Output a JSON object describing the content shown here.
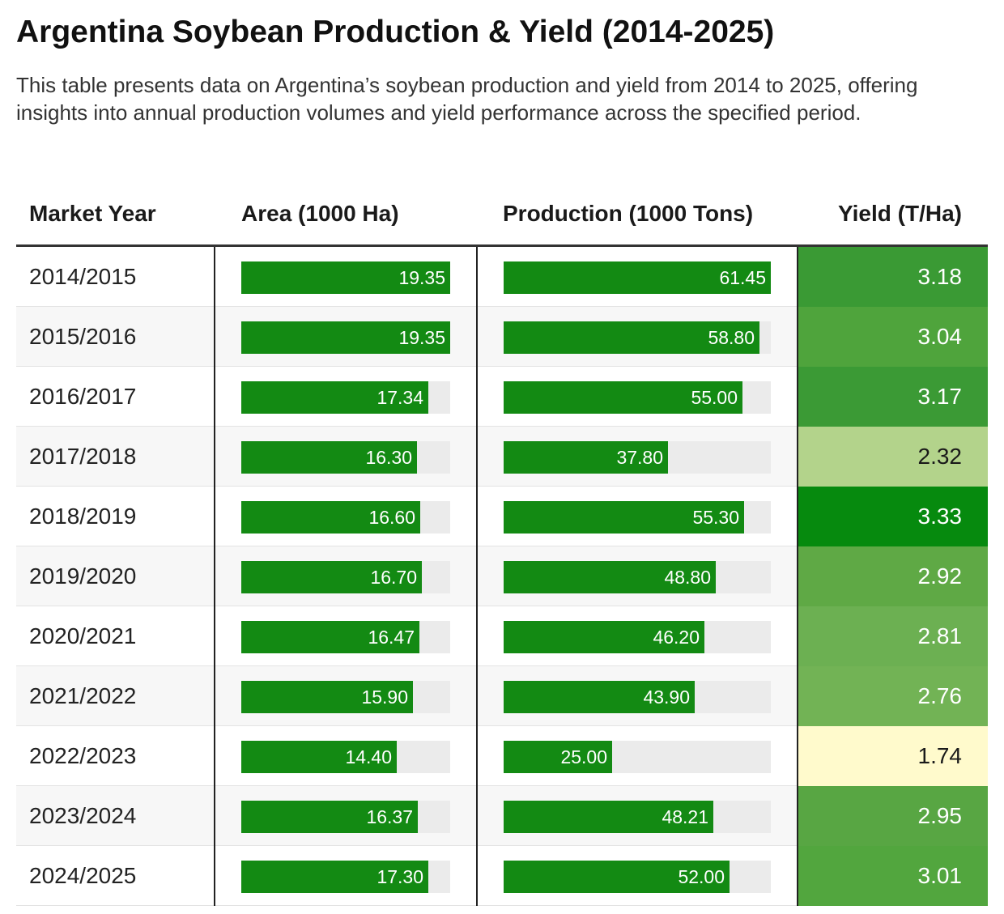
{
  "title": "Argentina Soybean Production & Yield (2014-2025)",
  "subtitle": "This table presents data on Argentina’s soybean production and yield from 2014 to 2025, offering insights into annual production volumes and yield performance across the specified period.",
  "headers": {
    "market_year": "Market Year",
    "area": "Area (1000 Ha)",
    "production": "Production (1000 Tons)",
    "yield": "Yield (T/Ha)"
  },
  "colors": {
    "bar": "#138a13",
    "track": "#ebebeb",
    "yield_low": "#fffacc",
    "yield_high": "#068a0e"
  },
  "chart_data": {
    "type": "table",
    "columns": [
      "Market Year",
      "Area (1000 Ha)",
      "Production (1000 Tons)",
      "Yield (T/Ha)"
    ],
    "area_max": 19.35,
    "production_max": 61.45,
    "rows": [
      {
        "year": "2014/2015",
        "area": 19.35,
        "area_label": "19.35",
        "production": 61.45,
        "production_label": "61.45",
        "yield": 3.18,
        "yield_label": "3.18",
        "yield_color": "#3a9a34"
      },
      {
        "year": "2015/2016",
        "area": 19.35,
        "area_label": "19.35",
        "production": 58.8,
        "production_label": "58.80",
        "yield": 3.04,
        "yield_label": "3.04",
        "yield_color": "#4fa43c"
      },
      {
        "year": "2016/2017",
        "area": 17.34,
        "area_label": "17.34",
        "production": 55.0,
        "production_label": "55.00",
        "yield": 3.17,
        "yield_label": "3.17",
        "yield_color": "#3b9a35"
      },
      {
        "year": "2017/2018",
        "area": 16.3,
        "area_label": "16.30",
        "production": 37.8,
        "production_label": "37.80",
        "yield": 2.32,
        "yield_label": "2.32",
        "yield_color": "#b3d38b"
      },
      {
        "year": "2018/2019",
        "area": 16.6,
        "area_label": "16.60",
        "production": 55.3,
        "production_label": "55.30",
        "yield": 3.33,
        "yield_label": "3.33",
        "yield_color": "#068a0e"
      },
      {
        "year": "2019/2020",
        "area": 16.7,
        "area_label": "16.70",
        "production": 48.8,
        "production_label": "48.80",
        "yield": 2.92,
        "yield_label": "2.92",
        "yield_color": "#5fa945"
      },
      {
        "year": "2020/2021",
        "area": 16.47,
        "area_label": "16.47",
        "production": 46.2,
        "production_label": "46.20",
        "yield": 2.81,
        "yield_label": "2.81",
        "yield_color": "#6cb052"
      },
      {
        "year": "2021/2022",
        "area": 15.9,
        "area_label": "15.90",
        "production": 43.9,
        "production_label": "43.90",
        "yield": 2.76,
        "yield_label": "2.76",
        "yield_color": "#72b355"
      },
      {
        "year": "2022/2023",
        "area": 14.4,
        "area_label": "14.40",
        "production": 25.0,
        "production_label": "25.00",
        "yield": 1.74,
        "yield_label": "1.74",
        "yield_color": "#fffacc"
      },
      {
        "year": "2023/2024",
        "area": 16.37,
        "area_label": "16.37",
        "production": 48.21,
        "production_label": "48.21",
        "yield": 2.95,
        "yield_label": "2.95",
        "yield_color": "#58a643"
      },
      {
        "year": "2024/2025",
        "area": 17.3,
        "area_label": "17.30",
        "production": 52.0,
        "production_label": "52.00",
        "yield": 3.01,
        "yield_label": "3.01",
        "yield_color": "#52a63e"
      }
    ]
  }
}
